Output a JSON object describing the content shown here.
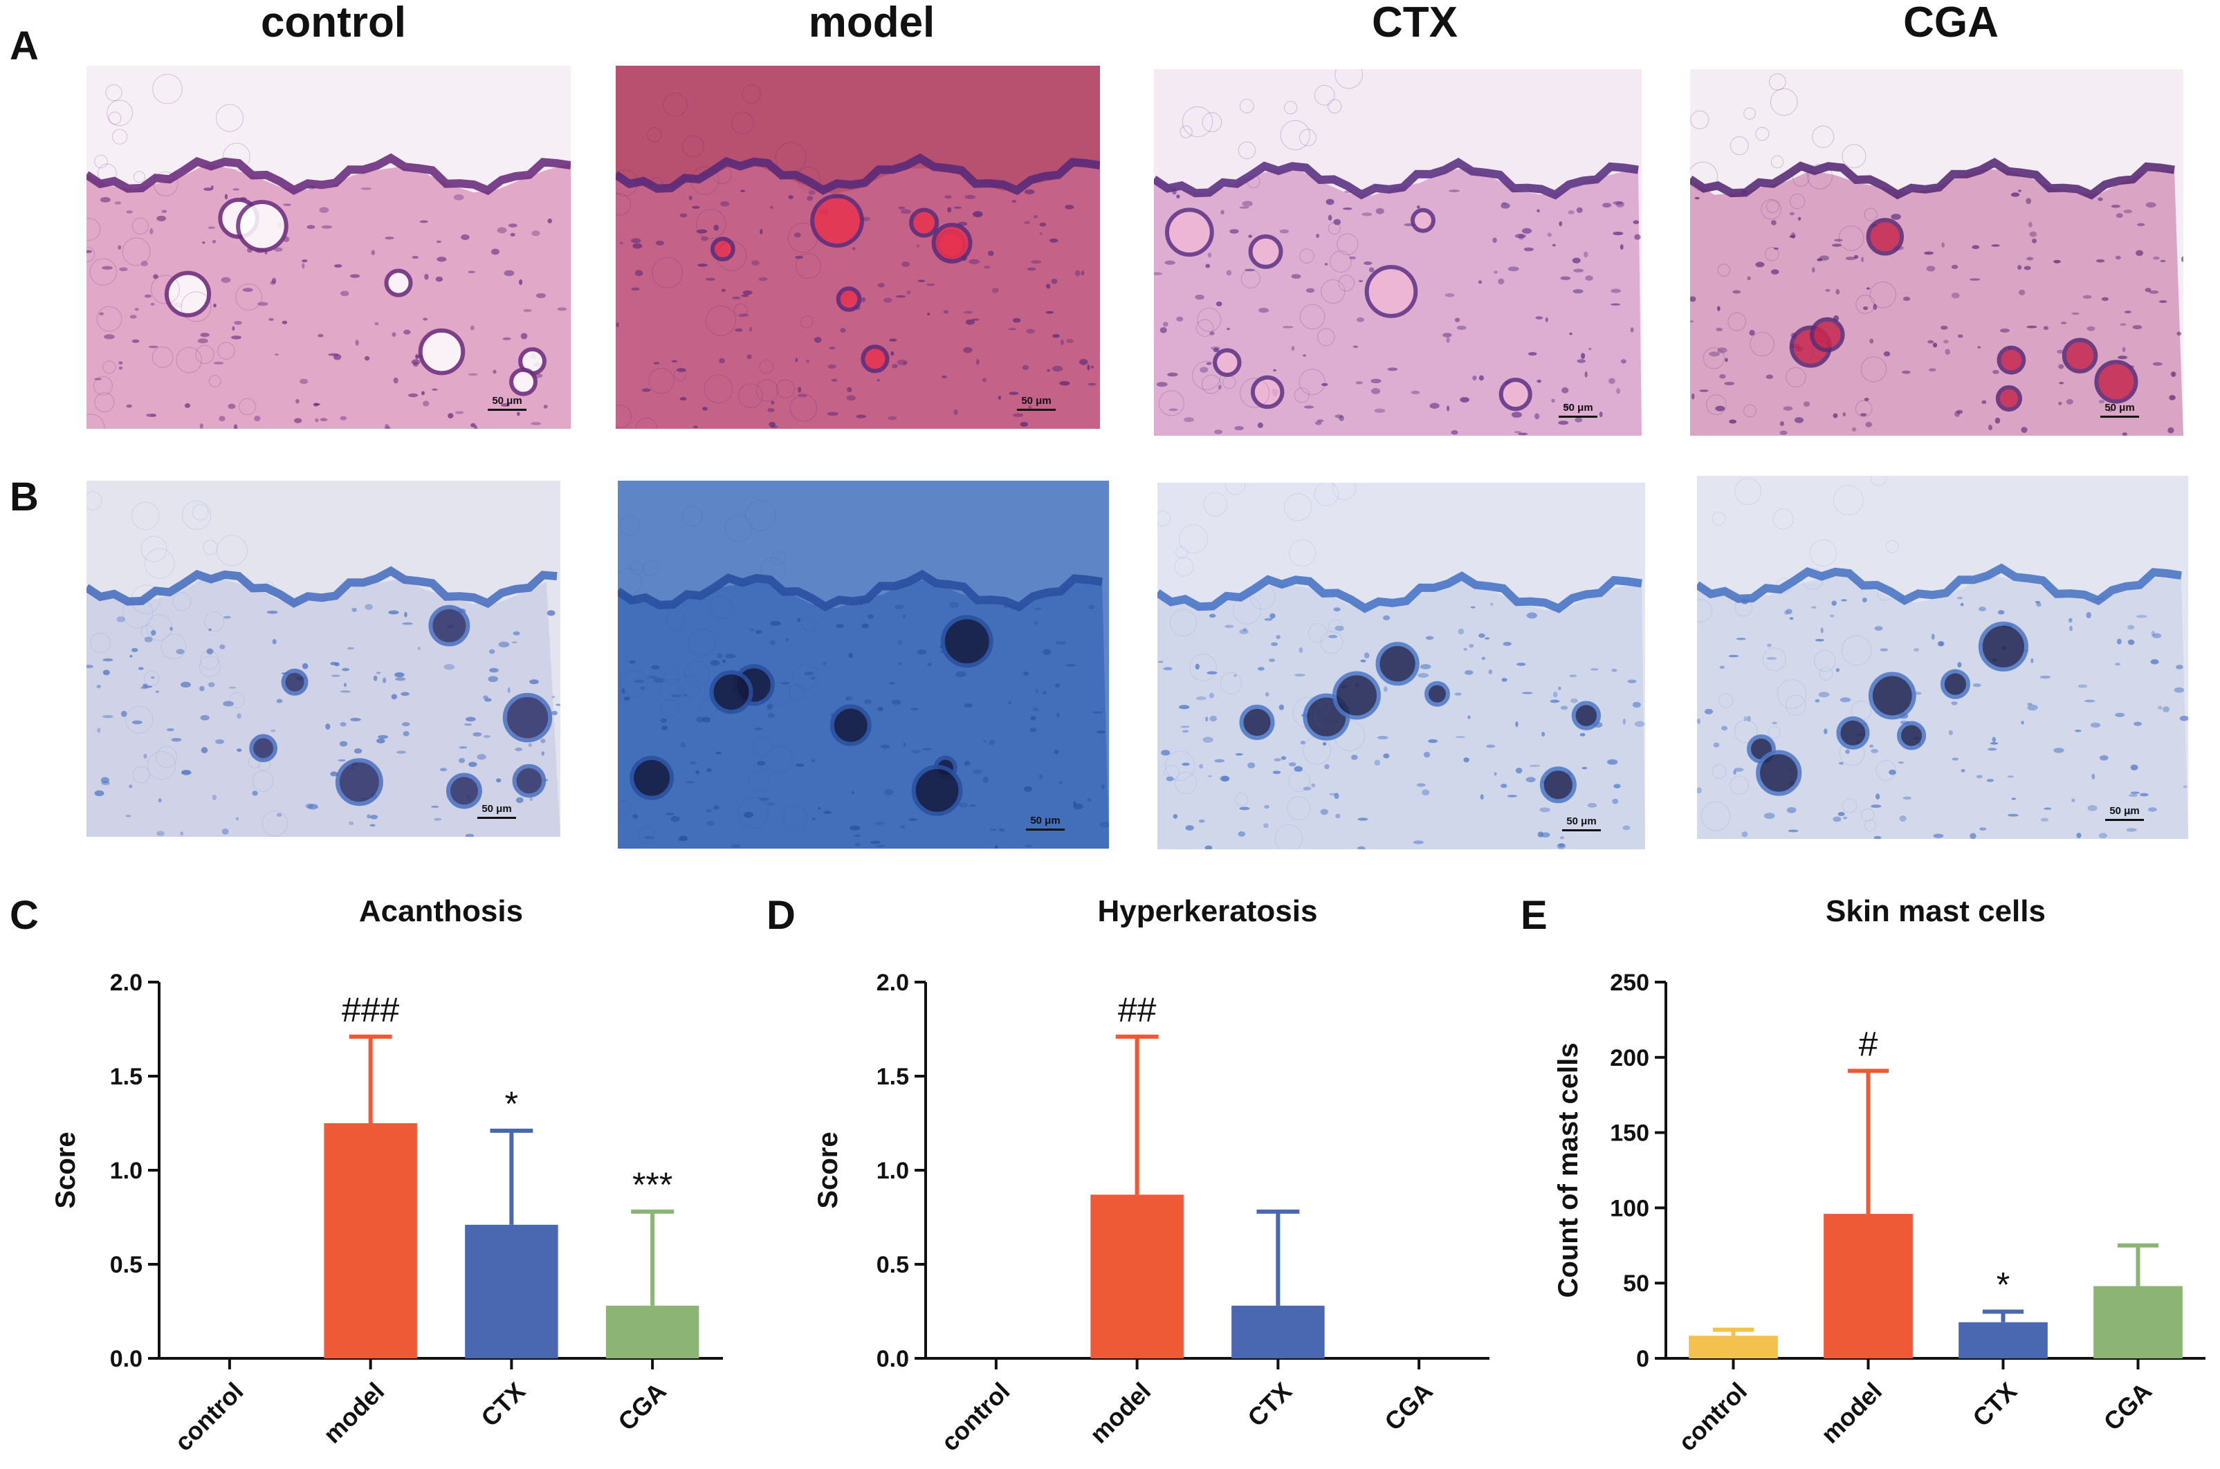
{
  "panel_letters": {
    "a": "A",
    "b": "B",
    "c": "C",
    "d": "D",
    "e": "E"
  },
  "groups": [
    "control",
    "model",
    "CTX",
    "CGA"
  ],
  "scale_bar": "50 μm",
  "he_images": [
    {
      "name": "control",
      "style": "H&E",
      "palette": {
        "bg": "#f7eff6",
        "tissue": "#d990b8",
        "epi": "#6b2f7e",
        "accent": "#ffffff"
      }
    },
    {
      "name": "model",
      "style": "H&E",
      "palette": {
        "bg": "#b8506f",
        "tissue": "#c96890",
        "epi": "#5a2a78",
        "accent": "#e8334f"
      }
    },
    {
      "name": "CTX",
      "style": "H&E",
      "palette": {
        "bg": "#f3eaf4",
        "tissue": "#d69ac6",
        "epi": "#5d3384",
        "accent": "#f2b8d6"
      }
    },
    {
      "name": "CGA",
      "style": "H&E",
      "palette": {
        "bg": "#f4edf3",
        "tissue": "#d28cb4",
        "epi": "#5a2c77",
        "accent": "#c5284f"
      }
    }
  ],
  "tb_images": [
    {
      "name": "control",
      "style": "toluidine blue",
      "palette": {
        "bg": "#e3e4ee",
        "tissue": "#c9cde4",
        "epi": "#4a70c0",
        "accent": "#2c2f66"
      }
    },
    {
      "name": "model",
      "style": "toluidine blue",
      "palette": {
        "bg": "#5e86c6",
        "tissue": "#3a66b6",
        "epi": "#2a4fa0",
        "accent": "#151a3e"
      }
    },
    {
      "name": "CTX",
      "style": "toluidine blue",
      "palette": {
        "bg": "#e2e5f1",
        "tissue": "#cbd2e8",
        "epi": "#4a76c6",
        "accent": "#1e2450"
      }
    },
    {
      "name": "CGA",
      "style": "toluidine blue",
      "palette": {
        "bg": "#e3e6f1",
        "tissue": "#cdd3e8",
        "epi": "#4b76c4",
        "accent": "#1e2450"
      }
    }
  ],
  "chart_data": [
    {
      "panel": "C",
      "type": "bar",
      "title": "Acanthosis",
      "ylabel": "Score",
      "categories": [
        "control",
        "model",
        "CTX",
        "CGA"
      ],
      "values": [
        0,
        1.25,
        0.71,
        0.28
      ],
      "errors": [
        0,
        0.46,
        0.5,
        0.5
      ],
      "annotations": [
        "",
        "###",
        "*",
        "***"
      ],
      "colors": [
        "#f2c14e",
        "#ee5a36",
        "#4a68b2",
        "#8cb575"
      ],
      "ylim": [
        0,
        2.0
      ],
      "yticks": [
        "0.0",
        "0.5",
        "1.0",
        "1.5",
        "2.0"
      ]
    },
    {
      "panel": "D",
      "type": "bar",
      "title": "Hyperkeratosis",
      "ylabel": "Score",
      "categories": [
        "control",
        "model",
        "CTX",
        "CGA"
      ],
      "values": [
        0,
        0.87,
        0.28,
        0
      ],
      "errors": [
        0,
        0.84,
        0.5,
        0
      ],
      "annotations": [
        "",
        "##",
        "",
        ""
      ],
      "colors": [
        "#f2c14e",
        "#ee5a36",
        "#4a68b2",
        "#8cb575"
      ],
      "ylim": [
        0,
        2.0
      ],
      "yticks": [
        "0.0",
        "0.5",
        "1.0",
        "1.5",
        "2.0"
      ]
    },
    {
      "panel": "E",
      "type": "bar",
      "title": "Skin mast cells",
      "ylabel": "Count of mast cells",
      "categories": [
        "control",
        "model",
        "CTX",
        "CGA"
      ],
      "values": [
        15,
        96,
        24,
        48
      ],
      "errors": [
        4,
        95,
        7,
        27
      ],
      "annotations": [
        "",
        "#",
        "*",
        ""
      ],
      "colors": [
        "#f2c14e",
        "#ee5a36",
        "#4a68b2",
        "#8cb575"
      ],
      "ylim": [
        0,
        250
      ],
      "yticks": [
        "0",
        "50",
        "100",
        "150",
        "200",
        "250"
      ]
    }
  ]
}
